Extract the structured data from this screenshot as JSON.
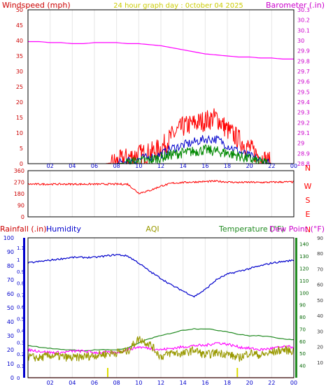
{
  "colors": {
    "wind": "#ff0000",
    "gust_avg": "#0000cc",
    "wind_avg": "#008800",
    "baro": "#ff00ff",
    "dir": "#ff0000",
    "rain": "#ff0000",
    "humidity": "#0000cc",
    "aqi": "#999900",
    "temp": "#228b22",
    "dew": "#ff00ff",
    "frame": "#000000",
    "tick_red": "#cc0000",
    "tick_purple": "#cc00cc",
    "tick_blue": "#0000cc",
    "tick_green": "#006600"
  },
  "x_ticks": [
    "02",
    "04",
    "06",
    "08",
    "10",
    "12",
    "14",
    "16",
    "18",
    "20",
    "22",
    "00"
  ],
  "chart_data": [
    {
      "type": "line",
      "title": "24 hour graph day : 0ctober 04 2025",
      "ylabel": "Windspeed (mph)",
      "y2label": "Barometer (.in)",
      "ylim": [
        0,
        50
      ],
      "y2lim": [
        28.8,
        30.3
      ],
      "y_ticks": [
        "0",
        "5",
        "10",
        "15",
        "20",
        "25",
        "30",
        "35",
        "40",
        "45",
        "50"
      ],
      "y2_ticks": [
        "28.8",
        "28.9",
        "29",
        "29.1",
        "29.2",
        "29.3",
        "29.4",
        "29.5",
        "29.6",
        "29.7",
        "29.8",
        "29.9",
        "30",
        "30.1",
        "30.2",
        "30.3"
      ],
      "x": [
        0,
        1,
        2,
        3,
        4,
        5,
        6,
        7,
        8,
        9,
        10,
        11,
        12,
        13,
        14,
        15,
        16,
        17,
        18,
        19,
        20,
        21,
        22,
        23,
        24
      ],
      "series": [
        {
          "values": [
            0,
            0,
            0,
            0,
            0,
            0,
            0,
            0,
            0.5,
            2,
            3,
            3.5,
            5,
            9,
            12,
            13,
            14,
            15,
            11,
            8,
            5,
            2,
            0,
            0,
            0
          ]
        },
        {
          "values": [
            0,
            0,
            0,
            0,
            0,
            0,
            0,
            0,
            0,
            1,
            1.5,
            2,
            3,
            5,
            6,
            7,
            8,
            8,
            6,
            4,
            2.5,
            1,
            0,
            0,
            0
          ]
        },
        {
          "values": [
            0,
            0,
            0,
            0,
            0,
            0,
            0,
            0,
            0,
            0.3,
            0.8,
            1.2,
            2,
            3,
            3.5,
            4,
            4.5,
            4,
            3.5,
            2.5,
            1.5,
            0.5,
            0,
            0,
            0
          ]
        },
        {
          "values": [
            29.99,
            29.99,
            29.98,
            29.98,
            29.97,
            29.97,
            29.98,
            29.98,
            29.98,
            29.97,
            29.97,
            29.96,
            29.95,
            29.93,
            29.91,
            29.89,
            29.87,
            29.86,
            29.85,
            29.84,
            29.84,
            29.83,
            29.83,
            29.82,
            29.82
          ]
        }
      ]
    },
    {
      "type": "line",
      "y_ticks": [
        "0",
        "90",
        "180",
        "270",
        "360"
      ],
      "compass": [
        "N",
        "W",
        "S",
        "E",
        "N"
      ],
      "ylim": [
        0,
        360
      ],
      "x": [
        0,
        1,
        2,
        3,
        4,
        5,
        6,
        7,
        8,
        9,
        10,
        11,
        12,
        13,
        14,
        15,
        16,
        17,
        18,
        19,
        20,
        21,
        22,
        23,
        24
      ],
      "series": [
        {
          "values": [
            255,
            255,
            255,
            255,
            255,
            255,
            255,
            255,
            255,
            255,
            185,
            205,
            240,
            262,
            268,
            272,
            275,
            278,
            272,
            268,
            270,
            268,
            270,
            272,
            272
          ]
        }
      ]
    },
    {
      "type": "line",
      "labels": [
        "Rainfall (.in)",
        "Humidity",
        "AQI",
        "Temperature (°F)",
        "Dew Point (°F)"
      ],
      "ylim_left": [
        0,
        100
      ],
      "ylim_rain": [
        0,
        1.1
      ],
      "ylim_temp": [
        30,
        145
      ],
      "ylim_dew": [
        0,
        90
      ],
      "left_ticks": [
        "0",
        "10",
        "20",
        "30",
        "40",
        "50",
        "60",
        "70",
        "80",
        "90",
        "100"
      ],
      "rain_ticks": [
        "0",
        "0.1",
        "0.2",
        "0.3",
        "0.4",
        "0.5",
        "0.6",
        "0.7",
        "0.8",
        "0.9",
        "1",
        "1.1"
      ],
      "temp_ticks": [
        "40",
        "50",
        "60",
        "70",
        "80",
        "90",
        "100",
        "110",
        "120",
        "130",
        "140"
      ],
      "dew_ticks": [
        "10",
        "20",
        "30",
        "40",
        "50",
        "60",
        "70",
        "80",
        "90"
      ],
      "x": [
        0,
        1,
        2,
        3,
        4,
        5,
        6,
        7,
        8,
        9,
        10,
        11,
        12,
        13,
        14,
        15,
        16,
        17,
        18,
        19,
        20,
        21,
        22,
        23,
        24
      ],
      "series": [
        {
          "values": [
            82,
            83,
            84,
            85,
            86,
            86,
            86,
            87,
            88,
            87,
            82,
            76,
            71,
            66,
            62,
            58,
            63,
            70,
            74,
            76,
            78,
            80,
            82,
            83,
            84
          ]
        },
        {
          "values": [
            23,
            22,
            21,
            20,
            20,
            19,
            20,
            20,
            20,
            21,
            25,
            28,
            30,
            32,
            34,
            35,
            35,
            34,
            33,
            31,
            30,
            30,
            29,
            28,
            27
          ]
        },
        {
          "values": [
            20,
            19,
            18,
            18,
            19,
            19,
            18,
            18,
            18,
            20,
            22,
            21,
            20,
            21,
            22,
            23,
            23,
            25,
            24,
            22,
            21,
            20,
            21,
            22,
            22
          ]
        },
        {
          "values": [
            15,
            14,
            16,
            15,
            14,
            15,
            16,
            17,
            18,
            19,
            28,
            24,
            15,
            18,
            17,
            20,
            16,
            18,
            17,
            14,
            18,
            16,
            18,
            20,
            19
          ]
        },
        {
          "values": [
            0,
            0,
            0,
            0,
            0,
            0,
            0,
            0,
            0,
            0,
            0,
            0,
            0,
            0,
            0,
            0,
            0,
            0,
            0,
            0,
            0,
            0,
            0,
            0,
            0
          ]
        }
      ]
    }
  ]
}
